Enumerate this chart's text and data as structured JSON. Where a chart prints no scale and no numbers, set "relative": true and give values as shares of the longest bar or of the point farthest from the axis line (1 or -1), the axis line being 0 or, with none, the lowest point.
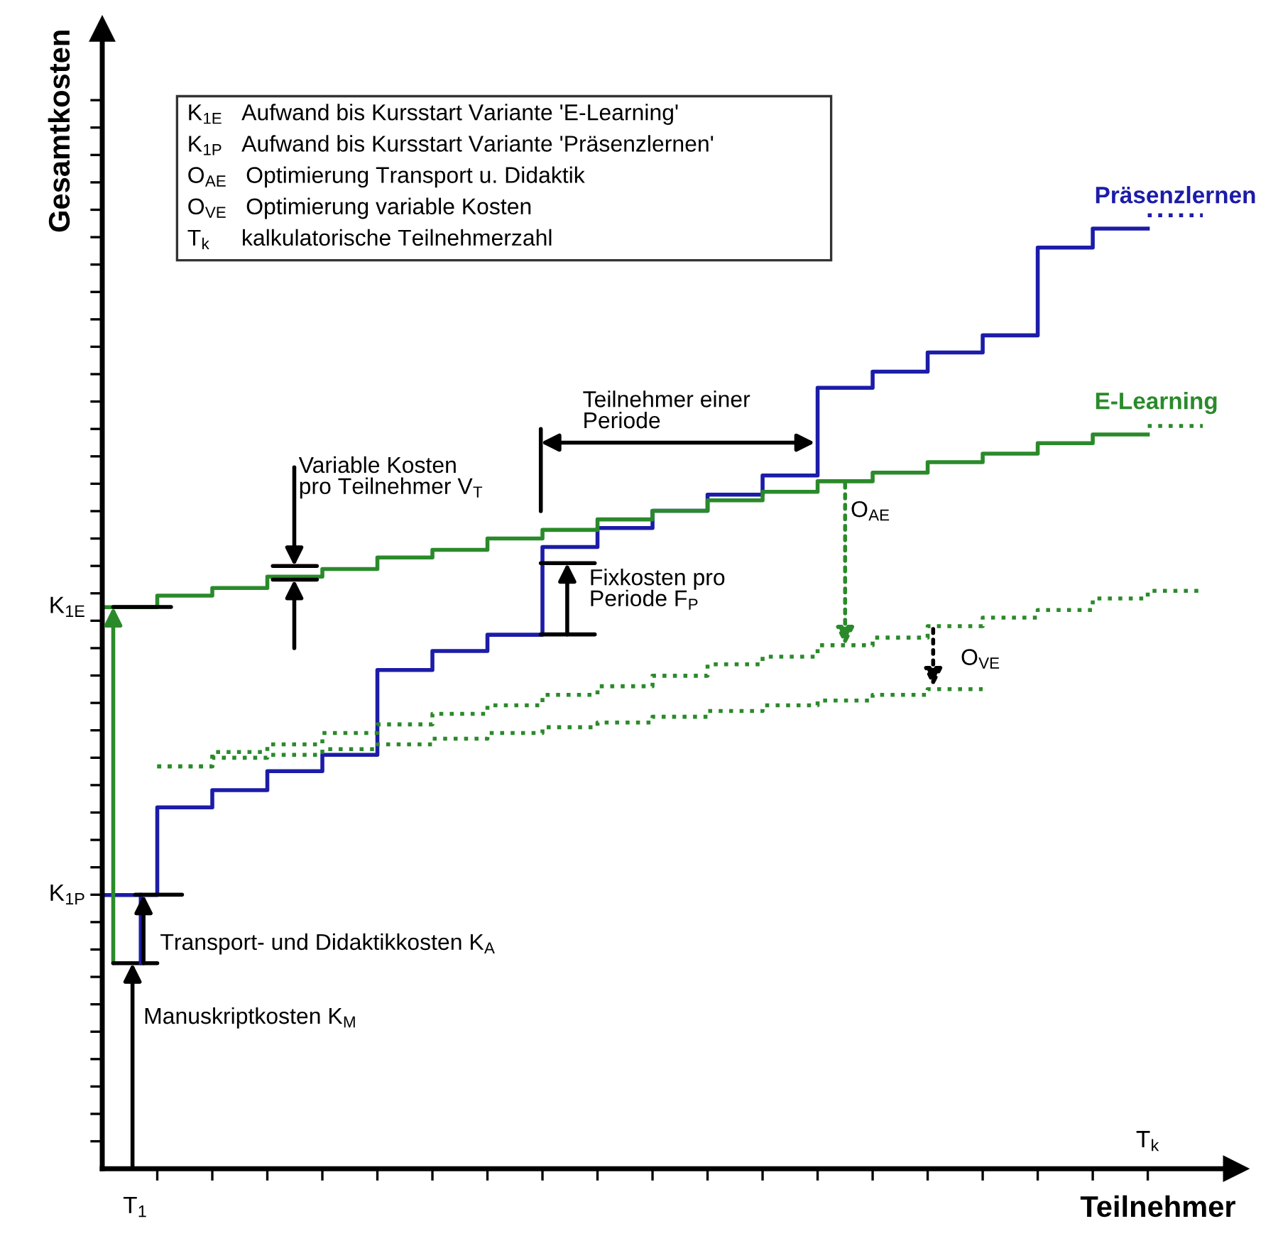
{
  "chart_data": {
    "type": "step",
    "relative": true,
    "xlabel": "Teilnehmer",
    "ylabel": "Gesamtkosten",
    "categories": [
      null,
      null,
      null,
      null,
      null,
      null,
      null,
      null,
      null,
      null,
      null,
      null,
      null,
      null,
      null,
      null,
      null,
      null,
      null,
      null,
      null
    ],
    "series": [
      {
        "name": "Präsenzlernen",
        "color": "#1c1ca8",
        "line_style": "solid",
        "values": [
          0.287,
          0.379,
          0.397,
          0.417,
          0.434,
          0.523,
          0.543,
          0.56,
          0.652,
          0.672,
          0.69,
          0.707,
          0.727,
          0.819,
          0.836,
          0.856,
          0.874,
          0.966,
          0.986,
          0.986,
          null
        ]
      },
      {
        "color": "#1c1ca8",
        "line_style": "dotted",
        "values": [
          null,
          null,
          null,
          null,
          null,
          null,
          null,
          null,
          null,
          null,
          null,
          null,
          null,
          null,
          null,
          null,
          null,
          null,
          null,
          1.0,
          1.0
        ]
      },
      {
        "name": "E-Learning",
        "color": "#2a8a2a",
        "line_style": "solid",
        "values": [
          0.589,
          0.601,
          0.609,
          0.621,
          0.629,
          0.641,
          0.649,
          0.661,
          0.67,
          0.681,
          0.69,
          0.701,
          0.71,
          0.721,
          0.73,
          0.741,
          0.75,
          0.761,
          0.77,
          0.77,
          null
        ]
      },
      {
        "color": "#2a8a2a",
        "line_style": "dotted",
        "values": [
          null,
          null,
          null,
          null,
          null,
          null,
          null,
          null,
          null,
          null,
          null,
          null,
          null,
          null,
          null,
          null,
          null,
          null,
          null,
          0.779,
          0.779
        ]
      },
      {
        "color": "#2a8a2a",
        "line_style": "dotted",
        "values": [
          null,
          0.422,
          0.437,
          0.445,
          0.457,
          0.466,
          0.477,
          0.486,
          0.497,
          0.506,
          0.517,
          0.529,
          0.537,
          0.549,
          0.557,
          0.569,
          0.578,
          0.586,
          0.598,
          0.606,
          0.606
        ]
      },
      {
        "color": "#2a8a2a",
        "line_style": "dotted",
        "values": [
          null,
          0.422,
          0.431,
          0.434,
          0.44,
          0.445,
          0.451,
          0.457,
          0.463,
          0.468,
          0.474,
          0.48,
          0.486,
          0.491,
          0.497,
          0.503,
          0.503,
          null,
          null,
          null,
          null
        ]
      }
    ],
    "annotations": [
      "K$_{1E}$   Aufwand bis Kursstart Variante 'E-Learning'",
      "K$_{1P}$   Aufwand bis Kursstart Variante 'Präsenzlernen'",
      "O$_{AE}$   Optimierung Transport u. Didaktik",
      "O$_{VE}$   Optimierung variable Kosten",
      "T$_{k}$     kalkulatorische Teilnehmerzahl",
      "K$_{1E}$",
      "K$_{1P}$",
      "T$_{1}$",
      "T$_{k}$",
      "Manuskriptkosten K$_{M}$",
      "Transport- und Didaktikkosten K$_{A}$",
      "Variable Kosten\npro Teilnehmer V$_{T}$",
      "Teilnehmer einer\nPeriode",
      "Fixkosten pro\nPeriode F$_{P}$",
      "O$_{AE}$",
      "O$_{VE}$"
    ]
  }
}
